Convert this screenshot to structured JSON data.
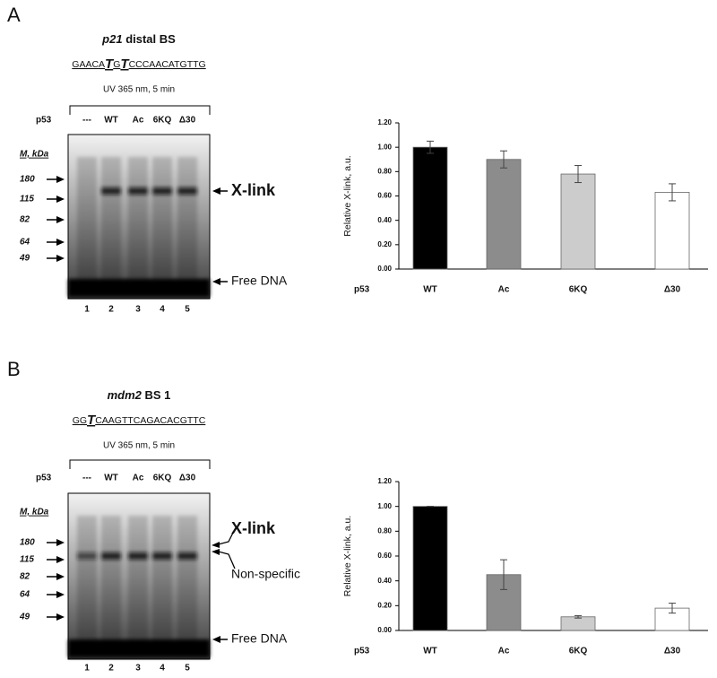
{
  "panels": [
    {
      "letter": "A",
      "title": [
        "p21",
        " distal BS"
      ],
      "sequence": [
        "GAACA",
        "T",
        "G",
        "T",
        "CCCAACATGTTG"
      ],
      "condition": "UV 365 nm, 5 min",
      "row_label": "p53",
      "lanes": [
        "---",
        "WT",
        "Ac",
        "6KQ",
        "Δ30"
      ],
      "marker_title": "M, kDa",
      "markers": [
        180,
        115,
        82,
        64,
        49
      ],
      "annotations": [
        "X-link",
        "Free DNA"
      ],
      "lane_numbers": [
        1,
        2,
        3,
        4,
        5
      ]
    },
    {
      "letter": "B",
      "title": [
        "mdm2",
        " BS 1"
      ],
      "sequence": [
        "GG",
        "T",
        "CAAGTTCAGACACGTTC"
      ],
      "condition": "UV 365 nm, 5 min",
      "row_label": "p53",
      "lanes": [
        "---",
        "WT",
        "Ac",
        "6KQ",
        "Δ30"
      ],
      "marker_title": "M, kDa",
      "markers": [
        180,
        115,
        82,
        64,
        49
      ],
      "annotations": [
        "X-link",
        "Non-specific",
        "Free DNA"
      ],
      "lane_numbers": [
        1,
        2,
        3,
        4,
        5
      ]
    }
  ],
  "chart_data": [
    {
      "type": "bar",
      "y_label": "Relative X-link, a.u.",
      "x_label": "p53",
      "categories": [
        "WT",
        "Ac",
        "6KQ",
        "Δ30"
      ],
      "values": [
        1.0,
        0.9,
        0.78,
        0.63
      ],
      "errors": [
        0.05,
        0.07,
        0.07,
        0.07
      ],
      "colors": [
        "#000000",
        "#8c8c8c",
        "#cccccc",
        "#ffffff"
      ],
      "ylim": [
        0,
        1.2
      ],
      "yticks": [
        {
          "value": 0,
          "label": "0.00"
        },
        {
          "value": 0.2,
          "label": "0.20"
        },
        {
          "value": 0.4,
          "label": "0.40"
        },
        {
          "value": 0.6,
          "label": "0.60"
        },
        {
          "value": 0.8,
          "label": "0.80"
        },
        {
          "value": 1.0,
          "label": "1.00"
        },
        {
          "value": 1.2,
          "label": "1.20"
        }
      ]
    },
    {
      "type": "bar",
      "y_label": "Relative X-link, a.u.",
      "x_label": "p53",
      "categories": [
        "WT",
        "Ac",
        "6KQ",
        "Δ30"
      ],
      "values": [
        1.0,
        0.45,
        0.11,
        0.18
      ],
      "errors": [
        0,
        0.12,
        0.01,
        0.04
      ],
      "colors": [
        "#000000",
        "#8c8c8c",
        "#cccccc",
        "#ffffff"
      ],
      "ylim": [
        0,
        1.2
      ],
      "yticks": [
        {
          "value": 0,
          "label": "0.00"
        },
        {
          "value": 0.2,
          "label": "0.20"
        },
        {
          "value": 0.4,
          "label": "0.40"
        },
        {
          "value": 0.6,
          "label": "0.60"
        },
        {
          "value": 0.8,
          "label": "0.80"
        },
        {
          "value": 1.0,
          "label": "1.00"
        },
        {
          "value": 1.2,
          "label": "1.20"
        }
      ]
    }
  ]
}
